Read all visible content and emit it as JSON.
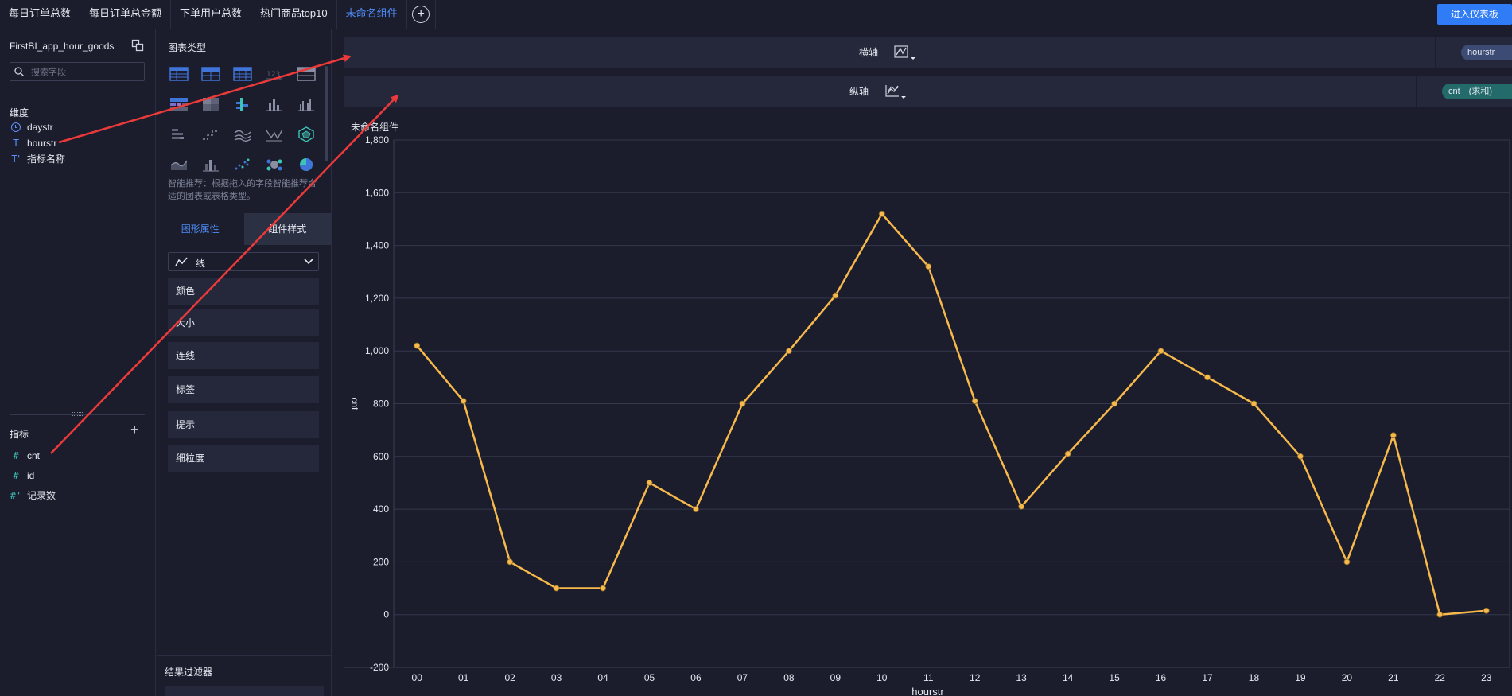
{
  "tabs": [
    {
      "label": "每日订单总数",
      "active": false
    },
    {
      "label": "每日订单总金额",
      "active": false
    },
    {
      "label": "下单用户总数",
      "active": false
    },
    {
      "label": "热门商品top10",
      "active": false
    },
    {
      "label": "未命名组件",
      "active": true
    }
  ],
  "enter_dashboard_label": "进入仪表板",
  "left_panel": {
    "dataset_name": "FirstBI_app_hour_goods",
    "search_placeholder": "搜索字段",
    "dimensions_title": "维度",
    "dimensions": [
      {
        "name": "daystr",
        "icon": "clock-icon"
      },
      {
        "name": "hourstr",
        "icon": "text-type-icon"
      },
      {
        "name": "指标名称",
        "icon": "text-type-icon"
      }
    ],
    "measures_title": "指标",
    "measures": [
      {
        "name": "cnt",
        "icon": "hash-icon"
      },
      {
        "name": "id",
        "icon": "hash-icon"
      },
      {
        "name": "记录数",
        "icon": "hash-icon"
      }
    ]
  },
  "prop_panel": {
    "chart_type_title": "图表类型",
    "smart_tip": "智能推荐：根据拖入的字段智能推荐合适的图表或表格类型。",
    "tab_graph_props": "图形属性",
    "tab_component_style": "组件样式",
    "marker_type": "线",
    "properties": [
      "颜色",
      "大小",
      "连线",
      "标签",
      "提示",
      "细粒度"
    ],
    "filter_title": "结果过滤器"
  },
  "shelves": {
    "x_axis_label": "横轴",
    "x_field": "hourstr",
    "y_axis_label": "纵轴",
    "y_field": "cnt　(求和)"
  },
  "component_name": "未命名组件",
  "colors": {
    "line": "#f7b94b",
    "accent": "#2f7cf6",
    "background": "#1b1d2c"
  },
  "chart_data": {
    "type": "line",
    "categories": [
      "00",
      "01",
      "02",
      "03",
      "04",
      "05",
      "06",
      "07",
      "08",
      "09",
      "10",
      "11",
      "12",
      "13",
      "14",
      "15",
      "16",
      "17",
      "18",
      "19",
      "20",
      "21",
      "22",
      "23"
    ],
    "series": [
      {
        "values": [
          1020,
          810,
          200,
          100,
          100,
          500,
          400,
          800,
          1000,
          1210,
          1520,
          1320,
          810,
          410,
          610,
          800,
          1000,
          900,
          800,
          600,
          200,
          680,
          0,
          15
        ]
      }
    ],
    "xlabel": "hourstr",
    "ylabel": "cnt",
    "ylim": [
      -200,
      1800
    ],
    "yticks": [
      "1,800",
      "1,600",
      "1,400",
      "1,200",
      "1,000",
      "800",
      "600",
      "400",
      "200",
      "0",
      "-200"
    ],
    "grid": true
  }
}
